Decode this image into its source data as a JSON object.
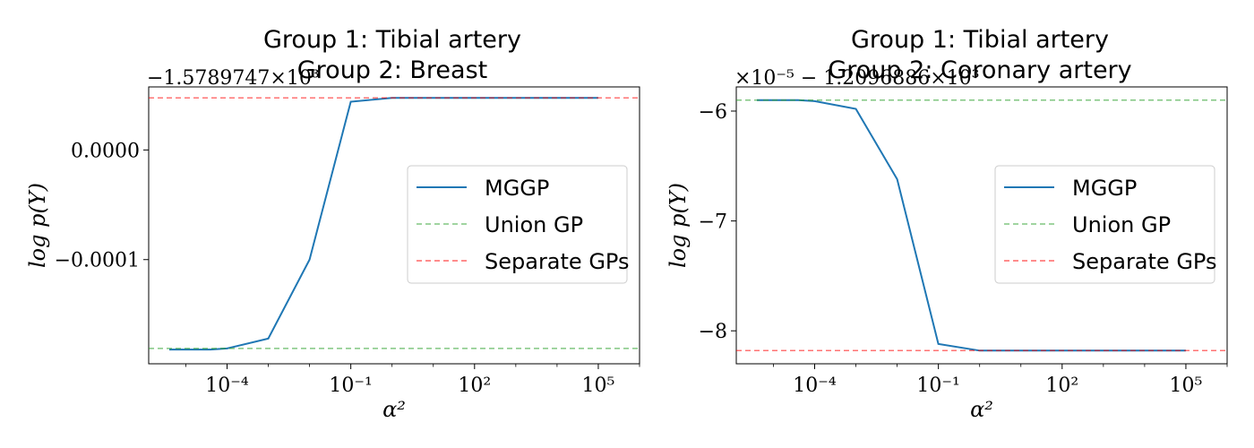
{
  "chart_data": [
    {
      "type": "line",
      "title_line1": "Group 1: Tibial artery",
      "title_line2": "Group 2: Breast",
      "offset_text": "−1.5789747×10³",
      "xlabel": "α²",
      "ylabel": "log p(Y)",
      "xscale": "log",
      "xlim_log10": [
        -5.9,
        6.0
      ],
      "ylim": [
        -0.000195,
        5.75e-05
      ],
      "x_ticks": [
        {
          "value": -4,
          "label": "10⁻⁴"
        },
        {
          "value": -1,
          "label": "10⁻¹"
        },
        {
          "value": 2,
          "label": "10²"
        },
        {
          "value": 5,
          "label": "10⁵"
        }
      ],
      "y_ticks": [
        {
          "value": 0.0,
          "label": "0.0000"
        },
        {
          "value": -0.0001,
          "label": "−0.0001"
        }
      ],
      "series": [
        {
          "name": "MGGP",
          "color": "#1f77b4",
          "style": "solid",
          "x_log10": [
            -5.4,
            -4.4,
            -4.0,
            -3.0,
            -2.0,
            -1.0,
            0.0,
            1.0,
            2.0,
            3.0,
            4.0,
            5.0
          ],
          "y": [
            -0.000182,
            -0.000182,
            -0.000181,
            -0.000172,
            -0.0001,
            4.4e-05,
            4.75e-05,
            4.75e-05,
            4.75e-05,
            4.75e-05,
            4.75e-05,
            4.75e-05
          ]
        },
        {
          "name": "Union GP",
          "color": "#2ca02c",
          "style": "dashed",
          "hline": -0.000181
        },
        {
          "name": "Separate GPs",
          "color": "#ff0000",
          "style": "dashed",
          "hline": 4.75e-05
        }
      ],
      "legend_location": "center-right",
      "grid": false
    },
    {
      "type": "line",
      "title_line1": "Group 1: Tibial artery",
      "title_line2": "Group 2: Coronary artery",
      "offset_text": "×10⁻⁵ − 1.2096886×10³",
      "xlabel": "α²",
      "ylabel": "log p(Y)",
      "xscale": "log",
      "xlim_log10": [
        -5.9,
        6.0
      ],
      "ylim": [
        -8.3,
        -5.78
      ],
      "x_ticks": [
        {
          "value": -4,
          "label": "10⁻⁴"
        },
        {
          "value": -1,
          "label": "10⁻¹"
        },
        {
          "value": 2,
          "label": "10²"
        },
        {
          "value": 5,
          "label": "10⁵"
        }
      ],
      "y_ticks": [
        {
          "value": -6,
          "label": "−6"
        },
        {
          "value": -7,
          "label": "−7"
        },
        {
          "value": -8,
          "label": "−8"
        }
      ],
      "series": [
        {
          "name": "MGGP",
          "color": "#1f77b4",
          "style": "solid",
          "x_log10": [
            -5.4,
            -4.4,
            -4.0,
            -3.0,
            -2.0,
            -1.0,
            0.0,
            1.0,
            2.0,
            3.0,
            4.0,
            5.0
          ],
          "y": [
            -5.9,
            -5.9,
            -5.91,
            -5.98,
            -6.62,
            -8.12,
            -8.18,
            -8.18,
            -8.18,
            -8.18,
            -8.18,
            -8.18
          ]
        },
        {
          "name": "Union GP",
          "color": "#2ca02c",
          "style": "dashed",
          "hline": -5.9
        },
        {
          "name": "Separate GPs",
          "color": "#ff0000",
          "style": "dashed",
          "hline": -8.18
        }
      ],
      "legend_location": "center-right",
      "grid": false
    }
  ]
}
